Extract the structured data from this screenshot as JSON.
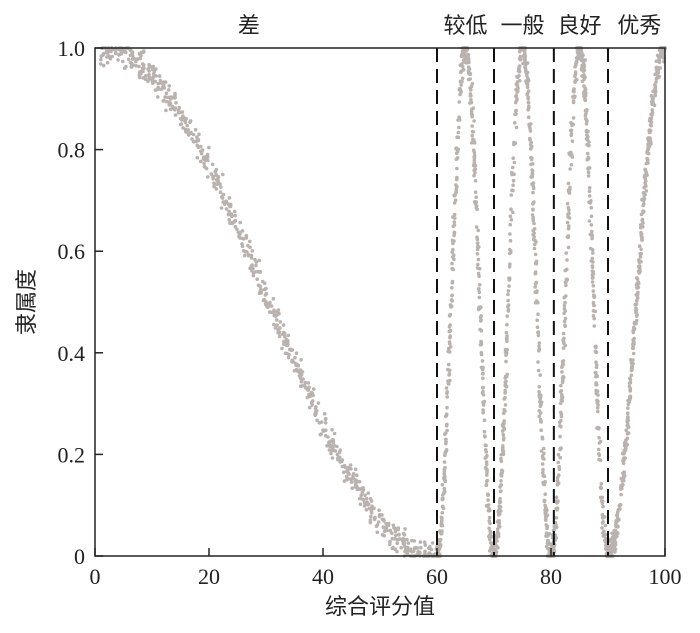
{
  "chart_data": {
    "type": "scatter",
    "title": "",
    "xlabel": "综合评分值",
    "ylabel": "隶属度",
    "xlim": [
      0,
      100
    ],
    "ylim": [
      0,
      1
    ],
    "x_ticks": [
      0,
      20,
      40,
      60,
      80,
      100
    ],
    "x_tick_labels": [
      "0",
      "20",
      "40",
      "60",
      "80",
      "100"
    ],
    "y_ticks": [
      0,
      0.2,
      0.4,
      0.6,
      0.8,
      1.0
    ],
    "y_tick_labels": [
      "0",
      "0.2",
      "0.4",
      "0.6",
      "0.8",
      "1.0"
    ],
    "grid": false,
    "point_color": "#b9b2ae",
    "boundaries": [
      60,
      70,
      80.5,
      90
    ],
    "regions": [
      {
        "label": "差",
        "x": 27
      },
      {
        "label": "较低",
        "x": 65
      },
      {
        "label": "一般",
        "x": 75
      },
      {
        "label": "良好",
        "x": 85
      },
      {
        "label": "优秀",
        "x": 95.5
      }
    ],
    "series": [
      {
        "shape": "decreasing-cosine",
        "x_start": 1,
        "x_end": 60,
        "peak": 1.0
      },
      {
        "shape": "peak",
        "x_start": 60,
        "x_peak": 65,
        "x_end": 70,
        "peak": 1.0
      },
      {
        "shape": "peak",
        "x_start": 70,
        "x_peak": 75,
        "x_end": 80,
        "peak": 1.0
      },
      {
        "shape": "peak",
        "x_start": 80,
        "x_peak": 85,
        "x_end": 90,
        "peak": 1.0
      },
      {
        "shape": "increasing",
        "x_start": 90,
        "x_end": 100,
        "peak": 1.0
      }
    ]
  }
}
